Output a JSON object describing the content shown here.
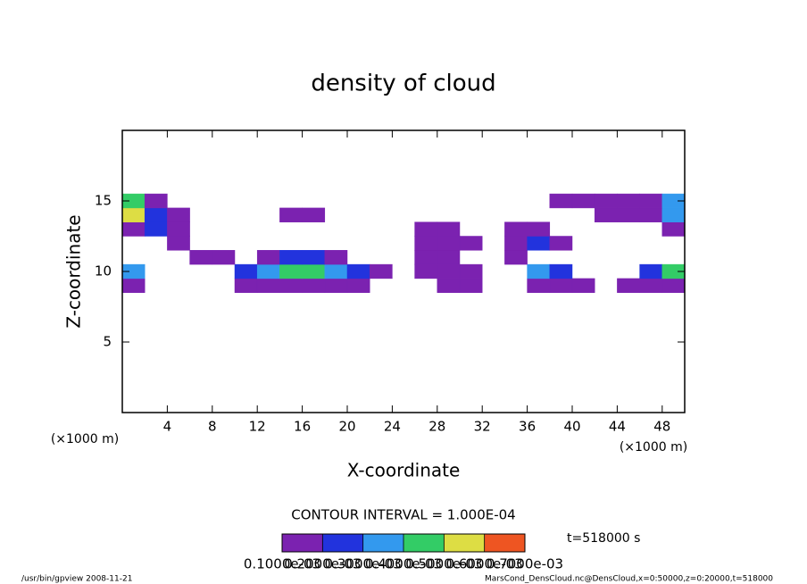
{
  "chart_data": {
    "type": "heatmap",
    "title": "density of cloud",
    "xlabel": "X-coordinate",
    "ylabel": "Z-coordinate",
    "x_unit": "(×1000 m)",
    "contour_note": "CONTOUR INTERVAL = 1.000E-04",
    "time_label": "t=518000 s",
    "footer_left": "/usr/bin/gpview  2008-11-21",
    "footer_right": "MarsCond_DensCloud.nc@DensCloud,x=0:50000,z=0:20000,t=518000",
    "xlim": [
      0,
      50
    ],
    "ylim": [
      0,
      20
    ],
    "xticks": [
      4,
      8,
      12,
      16,
      20,
      24,
      28,
      32,
      36,
      40,
      44,
      48
    ],
    "yticks": [
      5,
      10,
      15
    ],
    "x": [
      1,
      3,
      5,
      7,
      9,
      11,
      13,
      15,
      17,
      19,
      21,
      23,
      25,
      27,
      29,
      31,
      33,
      35,
      37,
      39,
      41,
      43,
      45,
      47,
      49
    ],
    "y": [
      9,
      10,
      11,
      12,
      13,
      14,
      15
    ],
    "values": [
      [
        0.0001,
        null,
        null,
        null,
        null,
        0.0001,
        0.0001,
        0.0001,
        0.0001,
        0.0001,
        0.0001,
        null,
        null,
        null,
        0.0001,
        0.0001,
        null,
        null,
        0.0001,
        0.0001,
        0.0001,
        null,
        0.0001,
        0.0001,
        0.0001
      ],
      [
        0.0003,
        null,
        null,
        null,
        null,
        0.0002,
        0.0003,
        0.0004,
        0.0004,
        0.0003,
        0.0002,
        0.0001,
        null,
        0.0001,
        0.0001,
        0.0001,
        null,
        null,
        0.0003,
        0.0002,
        null,
        null,
        null,
        0.0002,
        0.0004
      ],
      [
        null,
        null,
        null,
        0.0001,
        0.0001,
        null,
        0.0001,
        0.0002,
        0.0002,
        0.0001,
        null,
        null,
        null,
        0.0001,
        0.0001,
        null,
        null,
        0.0001,
        null,
        null,
        null,
        null,
        null,
        null,
        null
      ],
      [
        null,
        null,
        0.0001,
        null,
        null,
        null,
        null,
        null,
        null,
        null,
        null,
        null,
        null,
        0.0001,
        0.0001,
        0.0001,
        null,
        0.0001,
        0.0002,
        0.0001,
        null,
        null,
        null,
        null,
        null
      ],
      [
        0.0001,
        0.0002,
        0.0001,
        null,
        null,
        null,
        null,
        null,
        null,
        null,
        null,
        null,
        null,
        0.0001,
        0.0001,
        null,
        null,
        0.0001,
        0.0001,
        null,
        null,
        null,
        null,
        null,
        0.0001
      ],
      [
        0.0005,
        0.0002,
        0.0001,
        null,
        null,
        null,
        null,
        0.0001,
        0.0001,
        null,
        null,
        null,
        null,
        null,
        null,
        null,
        null,
        null,
        null,
        null,
        null,
        0.0001,
        0.0001,
        0.0001,
        0.0003
      ],
      [
        0.0004,
        0.0001,
        null,
        null,
        null,
        null,
        null,
        null,
        null,
        null,
        null,
        null,
        null,
        null,
        null,
        null,
        null,
        null,
        null,
        0.0001,
        0.0001,
        0.0001,
        0.0001,
        0.0001,
        0.0003
      ]
    ],
    "levels": [
      {
        "value": 0.0001,
        "label": "0.1000e-03"
      },
      {
        "value": 0.0002,
        "label": "0.2000e-03"
      },
      {
        "value": 0.0003,
        "label": "0.3000e-03"
      },
      {
        "value": 0.0004,
        "label": "0.4000e-03"
      },
      {
        "value": 0.0005,
        "label": "0.5000e-03"
      },
      {
        "value": 0.0006,
        "label": "0.6000e-03"
      },
      {
        "value": 0.0007,
        "label": "0.7000e-03"
      }
    ],
    "colors": [
      "#7b22b0",
      "#2233dd",
      "#3399ee",
      "#33cc66",
      "#dddd44",
      "#ee5522"
    ]
  }
}
